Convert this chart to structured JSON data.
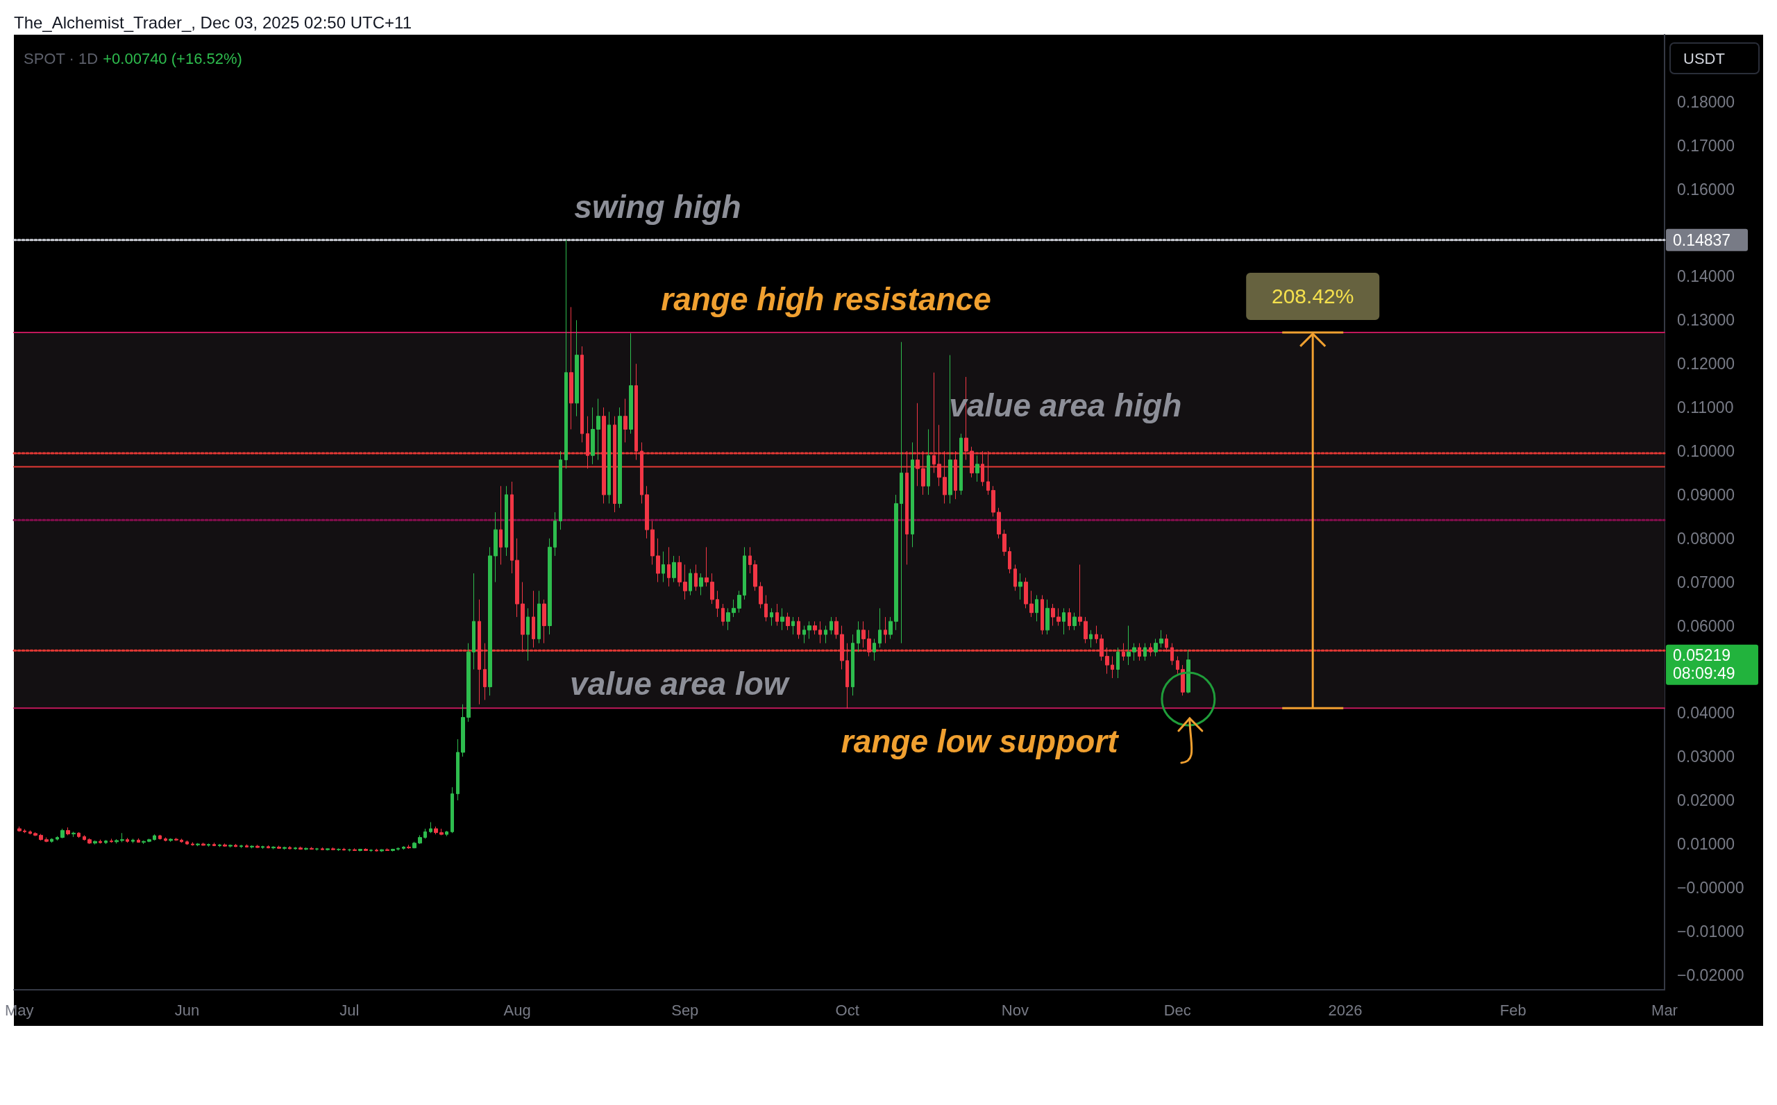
{
  "chart_data": {
    "type": "candlestick",
    "x": [
      "2025-05-01",
      "2025-05-02",
      "2025-05-03",
      "2025-05-04",
      "2025-05-05",
      "2025-05-06",
      "2025-05-07",
      "2025-05-08",
      "2025-05-09",
      "2025-05-10",
      "2025-05-11",
      "2025-05-12",
      "2025-05-13",
      "2025-05-14",
      "2025-05-15",
      "2025-05-16",
      "2025-05-17",
      "2025-05-18",
      "2025-05-19",
      "2025-05-20",
      "2025-05-21",
      "2025-05-22",
      "2025-05-23",
      "2025-05-24",
      "2025-05-25",
      "2025-05-26",
      "2025-05-27",
      "2025-05-28",
      "2025-05-29",
      "2025-05-30",
      "2025-05-31",
      "2025-06-01",
      "2025-06-02",
      "2025-06-03",
      "2025-06-04",
      "2025-06-05",
      "2025-06-06",
      "2025-06-07",
      "2025-06-08",
      "2025-06-09",
      "2025-06-10",
      "2025-06-11",
      "2025-06-12",
      "2025-06-13",
      "2025-06-14",
      "2025-06-15",
      "2025-06-16",
      "2025-06-17",
      "2025-06-18",
      "2025-06-19",
      "2025-06-20",
      "2025-06-21",
      "2025-06-22",
      "2025-06-23",
      "2025-06-24",
      "2025-06-25",
      "2025-06-26",
      "2025-06-27",
      "2025-06-28",
      "2025-06-29",
      "2025-06-30",
      "2025-07-01",
      "2025-07-02",
      "2025-07-03",
      "2025-07-04",
      "2025-07-05",
      "2025-07-06",
      "2025-07-07",
      "2025-07-08",
      "2025-07-09",
      "2025-07-10",
      "2025-07-11",
      "2025-07-12",
      "2025-07-13",
      "2025-07-14",
      "2025-07-15",
      "2025-07-16",
      "2025-07-17",
      "2025-07-18",
      "2025-07-19",
      "2025-07-20",
      "2025-07-21",
      "2025-07-22",
      "2025-07-23",
      "2025-07-24",
      "2025-07-25",
      "2025-07-26",
      "2025-07-27",
      "2025-07-28",
      "2025-07-29",
      "2025-07-30",
      "2025-07-31",
      "2025-08-01",
      "2025-08-02",
      "2025-08-03",
      "2025-08-04",
      "2025-08-05",
      "2025-08-06",
      "2025-08-07",
      "2025-08-08",
      "2025-08-09",
      "2025-08-10",
      "2025-08-11",
      "2025-08-12",
      "2025-08-13",
      "2025-08-14",
      "2025-08-15",
      "2025-08-16",
      "2025-08-17",
      "2025-08-18",
      "2025-08-19",
      "2025-08-20",
      "2025-08-21",
      "2025-08-22",
      "2025-08-23",
      "2025-08-24",
      "2025-08-25",
      "2025-08-26",
      "2025-08-27",
      "2025-08-28",
      "2025-08-29",
      "2025-08-30",
      "2025-08-31",
      "2025-09-01",
      "2025-09-02",
      "2025-09-03",
      "2025-09-04",
      "2025-09-05",
      "2025-09-06",
      "2025-09-07",
      "2025-09-08",
      "2025-09-09",
      "2025-09-10",
      "2025-09-11",
      "2025-09-12",
      "2025-09-13",
      "2025-09-14",
      "2025-09-15",
      "2025-09-16",
      "2025-09-17",
      "2025-09-18",
      "2025-09-19",
      "2025-09-20",
      "2025-09-21",
      "2025-09-22",
      "2025-09-23",
      "2025-09-24",
      "2025-09-25",
      "2025-09-26",
      "2025-09-27",
      "2025-09-28",
      "2025-09-29",
      "2025-09-30",
      "2025-10-01",
      "2025-10-02",
      "2025-10-03",
      "2025-10-04",
      "2025-10-05",
      "2025-10-06",
      "2025-10-07",
      "2025-10-08",
      "2025-10-09",
      "2025-10-10",
      "2025-10-11",
      "2025-10-12",
      "2025-10-13",
      "2025-10-14",
      "2025-10-15",
      "2025-10-16",
      "2025-10-17",
      "2025-10-18",
      "2025-10-19",
      "2025-10-20",
      "2025-10-21",
      "2025-10-22",
      "2025-10-23",
      "2025-10-24",
      "2025-10-25",
      "2025-10-26",
      "2025-10-27",
      "2025-10-28",
      "2025-10-29",
      "2025-10-30",
      "2025-10-31",
      "2025-11-01",
      "2025-11-02",
      "2025-11-03",
      "2025-11-04",
      "2025-11-05",
      "2025-11-06",
      "2025-11-07",
      "2025-11-08",
      "2025-11-09",
      "2025-11-10",
      "2025-11-11",
      "2025-11-12",
      "2025-11-13",
      "2025-11-14",
      "2025-11-15",
      "2025-11-16",
      "2025-11-17",
      "2025-11-18",
      "2025-11-19",
      "2025-11-20",
      "2025-11-21",
      "2025-11-22",
      "2025-11-23",
      "2025-11-24",
      "2025-11-25",
      "2025-11-26",
      "2025-11-27",
      "2025-11-28",
      "2025-11-29",
      "2025-11-30",
      "2025-12-01",
      "2025-12-02",
      "2025-12-03"
    ],
    "ohlc": [
      [
        0.0135,
        0.014,
        0.0128,
        0.013
      ],
      [
        0.013,
        0.0134,
        0.0125,
        0.0128
      ],
      [
        0.0128,
        0.0131,
        0.0122,
        0.0124
      ],
      [
        0.0124,
        0.0127,
        0.0118,
        0.012
      ],
      [
        0.012,
        0.0123,
        0.0108,
        0.011
      ],
      [
        0.011,
        0.0115,
        0.0104,
        0.0106
      ],
      [
        0.0106,
        0.0113,
        0.0103,
        0.0111
      ],
      [
        0.0111,
        0.0118,
        0.0108,
        0.0115
      ],
      [
        0.0115,
        0.0135,
        0.0113,
        0.0131
      ],
      [
        0.0131,
        0.0138,
        0.012,
        0.0123
      ],
      [
        0.0123,
        0.0128,
        0.0116,
        0.0125
      ],
      [
        0.0125,
        0.0127,
        0.0114,
        0.0117
      ],
      [
        0.0117,
        0.012,
        0.0108,
        0.011
      ],
      [
        0.011,
        0.0113,
        0.01,
        0.0102
      ],
      [
        0.0102,
        0.0108,
        0.0099,
        0.0106
      ],
      [
        0.0106,
        0.011,
        0.0101,
        0.0103
      ],
      [
        0.0103,
        0.0109,
        0.01,
        0.0107
      ],
      [
        0.0107,
        0.0112,
        0.0103,
        0.0105
      ],
      [
        0.0105,
        0.0111,
        0.0101,
        0.0108
      ],
      [
        0.0108,
        0.0125,
        0.0104,
        0.011
      ],
      [
        0.011,
        0.0114,
        0.0103,
        0.0106
      ],
      [
        0.0106,
        0.0112,
        0.0102,
        0.0109
      ],
      [
        0.0109,
        0.0113,
        0.0103,
        0.0104
      ],
      [
        0.0104,
        0.0108,
        0.01,
        0.0106
      ],
      [
        0.0106,
        0.0112,
        0.0104,
        0.011
      ],
      [
        0.011,
        0.0122,
        0.0108,
        0.0119
      ],
      [
        0.0119,
        0.0121,
        0.011,
        0.0112
      ],
      [
        0.0112,
        0.0115,
        0.0106,
        0.0108
      ],
      [
        0.0108,
        0.0113,
        0.0105,
        0.0111
      ],
      [
        0.0111,
        0.0114,
        0.0107,
        0.0109
      ],
      [
        0.0109,
        0.0112,
        0.0103,
        0.0105
      ],
      [
        0.0105,
        0.0108,
        0.0098,
        0.01
      ],
      [
        0.01,
        0.0104,
        0.0096,
        0.0098
      ],
      [
        0.0098,
        0.0102,
        0.0095,
        0.01
      ],
      [
        0.01,
        0.0103,
        0.0096,
        0.0097
      ],
      [
        0.0097,
        0.0101,
        0.0094,
        0.0099
      ],
      [
        0.0099,
        0.0103,
        0.0095,
        0.0096
      ],
      [
        0.0096,
        0.01,
        0.0093,
        0.0098
      ],
      [
        0.0098,
        0.0101,
        0.0094,
        0.0095
      ],
      [
        0.0095,
        0.0099,
        0.0092,
        0.0097
      ],
      [
        0.0097,
        0.01,
        0.0093,
        0.0094
      ],
      [
        0.0094,
        0.0098,
        0.0091,
        0.0096
      ],
      [
        0.0096,
        0.0099,
        0.0092,
        0.0093
      ],
      [
        0.0093,
        0.0097,
        0.009,
        0.0095
      ],
      [
        0.0095,
        0.0098,
        0.0091,
        0.0092
      ],
      [
        0.0092,
        0.0096,
        0.0089,
        0.0094
      ],
      [
        0.0094,
        0.0097,
        0.009,
        0.0091
      ],
      [
        0.0091,
        0.0095,
        0.0088,
        0.0093
      ],
      [
        0.0093,
        0.0096,
        0.0089,
        0.009
      ],
      [
        0.009,
        0.0094,
        0.0087,
        0.0092
      ],
      [
        0.0092,
        0.0095,
        0.0088,
        0.0089
      ],
      [
        0.0089,
        0.0093,
        0.0087,
        0.0091
      ],
      [
        0.0091,
        0.0094,
        0.0087,
        0.0088
      ],
      [
        0.0088,
        0.0092,
        0.0086,
        0.009
      ],
      [
        0.009,
        0.0093,
        0.0087,
        0.0088
      ],
      [
        0.0088,
        0.0091,
        0.0085,
        0.0089
      ],
      [
        0.0089,
        0.0092,
        0.0086,
        0.0087
      ],
      [
        0.0087,
        0.009,
        0.0085,
        0.0089
      ],
      [
        0.0089,
        0.0092,
        0.0086,
        0.0087
      ],
      [
        0.0087,
        0.009,
        0.0084,
        0.0088
      ],
      [
        0.0088,
        0.0091,
        0.0085,
        0.0086
      ],
      [
        0.0086,
        0.0089,
        0.0083,
        0.0087
      ],
      [
        0.0087,
        0.009,
        0.0084,
        0.0085
      ],
      [
        0.0085,
        0.0089,
        0.0083,
        0.0088
      ],
      [
        0.0088,
        0.009,
        0.0084,
        0.0085
      ],
      [
        0.0085,
        0.0088,
        0.0082,
        0.0086
      ],
      [
        0.0086,
        0.0089,
        0.0083,
        0.0084
      ],
      [
        0.0084,
        0.0088,
        0.0082,
        0.0087
      ],
      [
        0.0087,
        0.009,
        0.0084,
        0.0085
      ],
      [
        0.0085,
        0.0089,
        0.0083,
        0.0088
      ],
      [
        0.0088,
        0.0092,
        0.0085,
        0.009
      ],
      [
        0.009,
        0.0095,
        0.0087,
        0.0093
      ],
      [
        0.0093,
        0.0098,
        0.0089,
        0.0091
      ],
      [
        0.0091,
        0.0105,
        0.009,
        0.0102
      ],
      [
        0.0102,
        0.012,
        0.01,
        0.0115
      ],
      [
        0.0115,
        0.0135,
        0.0112,
        0.0128
      ],
      [
        0.0128,
        0.015,
        0.0125,
        0.0135
      ],
      [
        0.0135,
        0.014,
        0.0122,
        0.0126
      ],
      [
        0.0126,
        0.0135,
        0.012,
        0.0122
      ],
      [
        0.0122,
        0.013,
        0.0118,
        0.0128
      ],
      [
        0.0128,
        0.023,
        0.0125,
        0.0215
      ],
      [
        0.0215,
        0.034,
        0.02,
        0.031
      ],
      [
        0.031,
        0.042,
        0.03,
        0.039
      ],
      [
        0.039,
        0.056,
        0.038,
        0.054
      ],
      [
        0.054,
        0.072,
        0.05,
        0.061
      ],
      [
        0.061,
        0.066,
        0.042,
        0.05
      ],
      [
        0.05,
        0.056,
        0.043,
        0.046
      ],
      [
        0.046,
        0.078,
        0.044,
        0.076
      ],
      [
        0.076,
        0.086,
        0.07,
        0.082
      ],
      [
        0.082,
        0.092,
        0.074,
        0.078
      ],
      [
        0.078,
        0.092,
        0.076,
        0.09
      ],
      [
        0.09,
        0.093,
        0.072,
        0.075
      ],
      [
        0.075,
        0.08,
        0.062,
        0.065
      ],
      [
        0.065,
        0.07,
        0.054,
        0.058
      ],
      [
        0.058,
        0.064,
        0.052,
        0.062
      ],
      [
        0.062,
        0.068,
        0.055,
        0.057
      ],
      [
        0.057,
        0.068,
        0.056,
        0.065
      ],
      [
        0.065,
        0.066,
        0.056,
        0.06
      ],
      [
        0.06,
        0.08,
        0.058,
        0.078
      ],
      [
        0.078,
        0.086,
        0.076,
        0.084
      ],
      [
        0.084,
        0.1,
        0.082,
        0.098
      ],
      [
        0.098,
        0.14837,
        0.096,
        0.118
      ],
      [
        0.118,
        0.133,
        0.105,
        0.111
      ],
      [
        0.111,
        0.13,
        0.108,
        0.122
      ],
      [
        0.122,
        0.124,
        0.102,
        0.104
      ],
      [
        0.104,
        0.108,
        0.096,
        0.099
      ],
      [
        0.099,
        0.11,
        0.097,
        0.105
      ],
      [
        0.105,
        0.112,
        0.098,
        0.108
      ],
      [
        0.108,
        0.11,
        0.088,
        0.09
      ],
      [
        0.09,
        0.109,
        0.088,
        0.106
      ],
      [
        0.106,
        0.108,
        0.086,
        0.088
      ],
      [
        0.088,
        0.11,
        0.087,
        0.108
      ],
      [
        0.108,
        0.112,
        0.102,
        0.105
      ],
      [
        0.105,
        0.127,
        0.104,
        0.115
      ],
      [
        0.115,
        0.12,
        0.098,
        0.1
      ],
      [
        0.1,
        0.102,
        0.088,
        0.09
      ],
      [
        0.09,
        0.092,
        0.08,
        0.082
      ],
      [
        0.082,
        0.084,
        0.074,
        0.076
      ],
      [
        0.076,
        0.08,
        0.07,
        0.072
      ],
      [
        0.072,
        0.077,
        0.07,
        0.074
      ],
      [
        0.074,
        0.078,
        0.069,
        0.071
      ],
      [
        0.071,
        0.076,
        0.07,
        0.0745
      ],
      [
        0.0745,
        0.076,
        0.069,
        0.07
      ],
      [
        0.07,
        0.074,
        0.066,
        0.068
      ],
      [
        0.068,
        0.073,
        0.067,
        0.072
      ],
      [
        0.072,
        0.074,
        0.068,
        0.069
      ],
      [
        0.069,
        0.072,
        0.067,
        0.071
      ],
      [
        0.071,
        0.078,
        0.069,
        0.07
      ],
      [
        0.07,
        0.072,
        0.065,
        0.066
      ],
      [
        0.066,
        0.068,
        0.062,
        0.064
      ],
      [
        0.064,
        0.065,
        0.06,
        0.061
      ],
      [
        0.061,
        0.064,
        0.059,
        0.063
      ],
      [
        0.063,
        0.066,
        0.062,
        0.064
      ],
      [
        0.064,
        0.068,
        0.063,
        0.067
      ],
      [
        0.067,
        0.078,
        0.066,
        0.076
      ],
      [
        0.076,
        0.078,
        0.072,
        0.074
      ],
      [
        0.074,
        0.075,
        0.068,
        0.069
      ],
      [
        0.069,
        0.07,
        0.064,
        0.065
      ],
      [
        0.065,
        0.067,
        0.061,
        0.062
      ],
      [
        0.062,
        0.064,
        0.06,
        0.063
      ],
      [
        0.063,
        0.065,
        0.06,
        0.061
      ],
      [
        0.061,
        0.064,
        0.059,
        0.062
      ],
      [
        0.062,
        0.063,
        0.059,
        0.06
      ],
      [
        0.06,
        0.062,
        0.058,
        0.061
      ],
      [
        0.061,
        0.062,
        0.057,
        0.058
      ],
      [
        0.058,
        0.06,
        0.056,
        0.059
      ],
      [
        0.059,
        0.061,
        0.057,
        0.06
      ],
      [
        0.06,
        0.061,
        0.058,
        0.059
      ],
      [
        0.059,
        0.061,
        0.056,
        0.058
      ],
      [
        0.058,
        0.06,
        0.056,
        0.059
      ],
      [
        0.059,
        0.062,
        0.058,
        0.061
      ],
      [
        0.061,
        0.062,
        0.057,
        0.058
      ],
      [
        0.058,
        0.06,
        0.05,
        0.052
      ],
      [
        0.052,
        0.056,
        0.041,
        0.046
      ],
      [
        0.046,
        0.058,
        0.044,
        0.056
      ],
      [
        0.056,
        0.061,
        0.054,
        0.059
      ],
      [
        0.059,
        0.061,
        0.055,
        0.057
      ],
      [
        0.057,
        0.059,
        0.053,
        0.054
      ],
      [
        0.054,
        0.057,
        0.052,
        0.056
      ],
      [
        0.056,
        0.064,
        0.055,
        0.059
      ],
      [
        0.059,
        0.062,
        0.056,
        0.058
      ],
      [
        0.058,
        0.062,
        0.057,
        0.061
      ],
      [
        0.061,
        0.09,
        0.059,
        0.088
      ],
      [
        0.088,
        0.125,
        0.056,
        0.095
      ],
      [
        0.095,
        0.1,
        0.074,
        0.081
      ],
      [
        0.081,
        0.102,
        0.078,
        0.098
      ],
      [
        0.098,
        0.111,
        0.092,
        0.096
      ],
      [
        0.096,
        0.1,
        0.09,
        0.092
      ],
      [
        0.092,
        0.105,
        0.09,
        0.099
      ],
      [
        0.099,
        0.118,
        0.095,
        0.097
      ],
      [
        0.097,
        0.106,
        0.092,
        0.094
      ],
      [
        0.094,
        0.1,
        0.088,
        0.09
      ],
      [
        0.09,
        0.122,
        0.088,
        0.098
      ],
      [
        0.098,
        0.1,
        0.089,
        0.091
      ],
      [
        0.091,
        0.104,
        0.09,
        0.103
      ],
      [
        0.103,
        0.117,
        0.098,
        0.1
      ],
      [
        0.1,
        0.101,
        0.094,
        0.095
      ],
      [
        0.095,
        0.099,
        0.093,
        0.097
      ],
      [
        0.097,
        0.1,
        0.092,
        0.093
      ],
      [
        0.093,
        0.1,
        0.09,
        0.091
      ],
      [
        0.091,
        0.092,
        0.085,
        0.086
      ],
      [
        0.086,
        0.087,
        0.08,
        0.081
      ],
      [
        0.081,
        0.082,
        0.076,
        0.077
      ],
      [
        0.077,
        0.078,
        0.072,
        0.073
      ],
      [
        0.073,
        0.074,
        0.068,
        0.069
      ],
      [
        0.069,
        0.072,
        0.066,
        0.07
      ],
      [
        0.07,
        0.071,
        0.064,
        0.065
      ],
      [
        0.065,
        0.068,
        0.062,
        0.063
      ],
      [
        0.063,
        0.067,
        0.061,
        0.066
      ],
      [
        0.066,
        0.067,
        0.058,
        0.059
      ],
      [
        0.059,
        0.066,
        0.058,
        0.064
      ],
      [
        0.064,
        0.065,
        0.06,
        0.062
      ],
      [
        0.062,
        0.064,
        0.06,
        0.061
      ],
      [
        0.061,
        0.064,
        0.058,
        0.063
      ],
      [
        0.063,
        0.064,
        0.059,
        0.06
      ],
      [
        0.06,
        0.063,
        0.059,
        0.062
      ],
      [
        0.062,
        0.074,
        0.06,
        0.061
      ],
      [
        0.061,
        0.062,
        0.056,
        0.057
      ],
      [
        0.057,
        0.059,
        0.055,
        0.058
      ],
      [
        0.058,
        0.06,
        0.056,
        0.057
      ],
      [
        0.057,
        0.058,
        0.052,
        0.053
      ],
      [
        0.053,
        0.055,
        0.049,
        0.051
      ],
      [
        0.051,
        0.053,
        0.048,
        0.05
      ],
      [
        0.05,
        0.055,
        0.048,
        0.054
      ],
      [
        0.054,
        0.056,
        0.052,
        0.053
      ],
      [
        0.053,
        0.06,
        0.051,
        0.054
      ],
      [
        0.054,
        0.056,
        0.052,
        0.055
      ],
      [
        0.055,
        0.056,
        0.052,
        0.053
      ],
      [
        0.053,
        0.056,
        0.052,
        0.055
      ],
      [
        0.055,
        0.056,
        0.053,
        0.054
      ],
      [
        0.054,
        0.057,
        0.053,
        0.056
      ],
      [
        0.056,
        0.059,
        0.055,
        0.057
      ],
      [
        0.057,
        0.058,
        0.054,
        0.055
      ],
      [
        0.055,
        0.056,
        0.051,
        0.052
      ],
      [
        0.052,
        0.053,
        0.049,
        0.05
      ],
      [
        0.05,
        0.051,
        0.044,
        0.04479
      ],
      [
        0.04479,
        0.0545,
        0.0445,
        0.05219
      ]
    ],
    "xlim": [
      "2025-04-30",
      "2026-03-01"
    ],
    "xticks": [
      {
        "value": "2025-05-01",
        "label": "May"
      },
      {
        "value": "2025-06-01",
        "label": "Jun"
      },
      {
        "value": "2025-07-01",
        "label": "Jul"
      },
      {
        "value": "2025-08-01",
        "label": "Aug"
      },
      {
        "value": "2025-09-01",
        "label": "Sep"
      },
      {
        "value": "2025-10-01",
        "label": "Oct"
      },
      {
        "value": "2025-11-01",
        "label": "Nov"
      },
      {
        "value": "2025-12-01",
        "label": "Dec"
      },
      {
        "value": "2026-01-01",
        "label": "2026"
      },
      {
        "value": "2026-02-01",
        "label": "Feb"
      },
      {
        "value": "2026-03-01",
        "label": "Mar"
      }
    ],
    "ylim": [
      -0.0234,
      0.1954
    ],
    "yticks": [
      {
        "value": -0.02,
        "label": "−0.02000"
      },
      {
        "value": -0.01,
        "label": "−0.01000"
      },
      {
        "value": 0,
        "label": "−0.00000"
      },
      {
        "value": 0.01,
        "label": "0.01000"
      },
      {
        "value": 0.02,
        "label": "0.02000"
      },
      {
        "value": 0.03,
        "label": "0.03000"
      },
      {
        "value": 0.04,
        "label": "0.04000"
      },
      {
        "value": 0.06,
        "label": "0.06000"
      },
      {
        "value": 0.07,
        "label": "0.07000"
      },
      {
        "value": 0.08,
        "label": "0.08000"
      },
      {
        "value": 0.09,
        "label": "0.09000"
      },
      {
        "value": 0.1,
        "label": "0.10000"
      },
      {
        "value": 0.11,
        "label": "0.11000"
      },
      {
        "value": 0.12,
        "label": "0.12000"
      },
      {
        "value": 0.13,
        "label": "0.13000"
      },
      {
        "value": 0.14,
        "label": "0.14000"
      },
      {
        "value": 0.16,
        "label": "0.16000"
      },
      {
        "value": 0.17,
        "label": "0.17000"
      },
      {
        "value": 0.18,
        "label": "0.18000"
      }
    ],
    "ref_lines": [
      {
        "axis": "y",
        "value": 0.14837,
        "color": "#d1d4dc",
        "line_style": "dotted",
        "label": "swing high"
      },
      {
        "axis": "y",
        "value": 0.1272,
        "color": "#c2185b",
        "line_style": "solid",
        "label": "range high resistance"
      },
      {
        "axis": "y",
        "value": 0.0411,
        "color": "#c2185b",
        "line_style": "solid",
        "label": "range low support"
      },
      {
        "axis": "y",
        "value": 0.0995,
        "color": "#e53935",
        "line_style": "dotted",
        "label": "value area high"
      },
      {
        "axis": "y",
        "value": 0.0964,
        "color": "#e53935",
        "line_style": "solid"
      },
      {
        "axis": "y",
        "value": 0.0543,
        "color": "#e53935",
        "line_style": "dotted",
        "label": "value area low"
      },
      {
        "axis": "y",
        "value": 0.0842,
        "color": "#880e4f",
        "line_style": "dotted"
      }
    ],
    "bands": [
      {
        "axis": "y",
        "from": 0.0411,
        "to": 0.1272,
        "color": "#131012"
      }
    ],
    "annotations": [
      "The_Alchemist_Trader_, Dec 03, 2025 02:50 UTC+11",
      "SPOT · 1D",
      "+0.00740 (+16.52%)",
      "USDT",
      {
        "text": "208.42%",
        "x": "2025-12-26",
        "y": 0.1272
      },
      "0.14837",
      "0.05219",
      "08:09:49"
    ]
  }
}
